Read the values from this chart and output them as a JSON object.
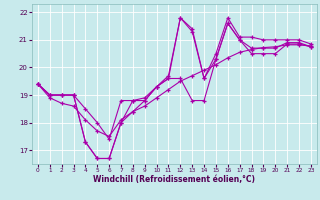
{
  "xlabel": "Windchill (Refroidissement éolien,°C)",
  "xlim": [
    -0.5,
    23.5
  ],
  "ylim": [
    16.5,
    22.3
  ],
  "xticks": [
    0,
    1,
    2,
    3,
    4,
    5,
    6,
    7,
    8,
    9,
    10,
    11,
    12,
    13,
    14,
    15,
    16,
    17,
    18,
    19,
    20,
    21,
    22,
    23
  ],
  "yticks": [
    17,
    18,
    19,
    20,
    21,
    22
  ],
  "background_color": "#c8eaec",
  "line_color": "#aa00aa",
  "grid_color": "#ffffff",
  "line1_x": [
    0,
    1,
    2,
    3,
    4,
    5,
    6,
    7,
    8,
    9,
    10,
    11,
    12,
    13,
    14,
    15,
    16,
    17,
    18,
    19,
    20,
    21,
    22,
    23
  ],
  "line1_y": [
    19.4,
    19.0,
    19.0,
    19.0,
    18.5,
    18.0,
    17.4,
    18.8,
    18.8,
    18.9,
    19.3,
    19.7,
    21.8,
    21.4,
    19.6,
    20.5,
    21.8,
    21.1,
    21.1,
    21.0,
    21.0,
    21.0,
    21.0,
    20.85
  ],
  "line2_x": [
    0,
    1,
    2,
    3,
    4,
    5,
    6,
    7,
    8,
    9,
    10,
    11,
    12,
    13,
    14,
    15,
    16,
    17,
    18,
    19,
    20,
    21,
    22,
    23
  ],
  "line2_y": [
    19.4,
    19.0,
    19.0,
    19.0,
    17.3,
    16.7,
    16.7,
    18.0,
    18.4,
    18.8,
    19.3,
    19.6,
    19.6,
    18.8,
    18.8,
    20.3,
    21.6,
    21.0,
    20.7,
    20.7,
    20.7,
    20.9,
    20.9,
    20.75
  ],
  "line3_x": [
    0,
    1,
    2,
    3,
    4,
    5,
    6,
    7,
    8,
    9,
    10,
    11,
    12,
    13,
    14,
    15,
    16,
    17,
    18,
    19,
    20,
    21,
    22,
    23
  ],
  "line3_y": [
    19.4,
    19.0,
    19.0,
    19.0,
    17.3,
    16.7,
    16.7,
    18.0,
    18.8,
    18.8,
    19.3,
    19.6,
    21.8,
    21.3,
    19.6,
    20.3,
    21.6,
    21.0,
    20.5,
    20.5,
    20.5,
    20.85,
    20.85,
    20.75
  ],
  "line4_x": [
    0,
    1,
    2,
    3,
    4,
    5,
    6,
    7,
    8,
    9,
    10,
    11,
    12,
    13,
    14,
    15,
    16,
    17,
    18,
    19,
    20,
    21,
    22,
    23
  ],
  "line4_y": [
    19.4,
    18.9,
    18.7,
    18.6,
    18.1,
    17.7,
    17.5,
    18.1,
    18.4,
    18.6,
    18.9,
    19.2,
    19.5,
    19.7,
    19.9,
    20.1,
    20.35,
    20.55,
    20.65,
    20.72,
    20.75,
    20.82,
    20.82,
    20.78
  ]
}
